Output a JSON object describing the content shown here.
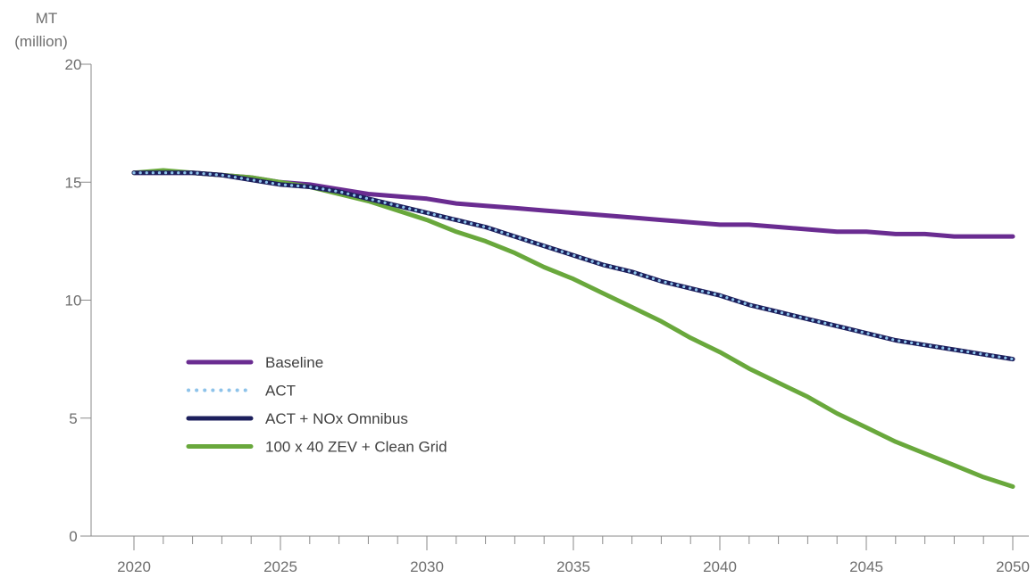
{
  "chart_data": {
    "type": "line",
    "title": "",
    "ylabel_line1": "MT",
    "ylabel_line2": "(million)",
    "xlabel": "",
    "xlim": [
      2020,
      2050
    ],
    "ylim": [
      0,
      20
    ],
    "x_ticks": [
      "2020",
      "2025",
      "2030",
      "2035",
      "2040",
      "2045",
      "2050"
    ],
    "y_ticks": [
      "0",
      "5",
      "10",
      "15",
      "20"
    ],
    "grid": false,
    "legend_position": "lower-left",
    "x": [
      2020,
      2021,
      2022,
      2023,
      2024,
      2025,
      2026,
      2027,
      2028,
      2029,
      2030,
      2031,
      2032,
      2033,
      2034,
      2035,
      2036,
      2037,
      2038,
      2039,
      2040,
      2041,
      2042,
      2043,
      2044,
      2045,
      2046,
      2047,
      2048,
      2049,
      2050
    ],
    "series": [
      {
        "name": "Baseline",
        "color": "#6a2c91",
        "style": "solid",
        "values": [
          15.4,
          15.4,
          15.4,
          15.3,
          15.2,
          15.0,
          14.9,
          14.7,
          14.5,
          14.4,
          14.3,
          14.1,
          14.0,
          13.9,
          13.8,
          13.7,
          13.6,
          13.5,
          13.4,
          13.3,
          13.2,
          13.2,
          13.1,
          13.0,
          12.9,
          12.9,
          12.8,
          12.8,
          12.7,
          12.7,
          12.7
        ]
      },
      {
        "name": "ACT",
        "color": "#8ec3ea",
        "style": "dotted",
        "values": [
          15.4,
          15.4,
          15.4,
          15.3,
          15.1,
          14.9,
          14.8,
          14.6,
          14.3,
          14.0,
          13.7,
          13.4,
          13.1,
          12.7,
          12.3,
          11.9,
          11.5,
          11.2,
          10.8,
          10.5,
          10.2,
          9.8,
          9.5,
          9.2,
          8.9,
          8.6,
          8.3,
          8.1,
          7.9,
          7.7,
          7.5
        ]
      },
      {
        "name": "ACT + NOx Omnibus",
        "color": "#1c1f5c",
        "style": "solid",
        "values": [
          15.4,
          15.4,
          15.4,
          15.3,
          15.1,
          14.9,
          14.8,
          14.6,
          14.3,
          14.0,
          13.7,
          13.4,
          13.1,
          12.7,
          12.3,
          11.9,
          11.5,
          11.2,
          10.8,
          10.5,
          10.2,
          9.8,
          9.5,
          9.2,
          8.9,
          8.6,
          8.3,
          8.1,
          7.9,
          7.7,
          7.5
        ]
      },
      {
        "name": "100 x 40 ZEV + Clean Grid",
        "color": "#69a83c",
        "style": "solid",
        "values": [
          15.4,
          15.5,
          15.4,
          15.3,
          15.2,
          15.0,
          14.8,
          14.5,
          14.2,
          13.8,
          13.4,
          12.9,
          12.5,
          12.0,
          11.4,
          10.9,
          10.3,
          9.7,
          9.1,
          8.4,
          7.8,
          7.1,
          6.5,
          5.9,
          5.2,
          4.6,
          4.0,
          3.5,
          3.0,
          2.5,
          2.1
        ]
      }
    ]
  }
}
